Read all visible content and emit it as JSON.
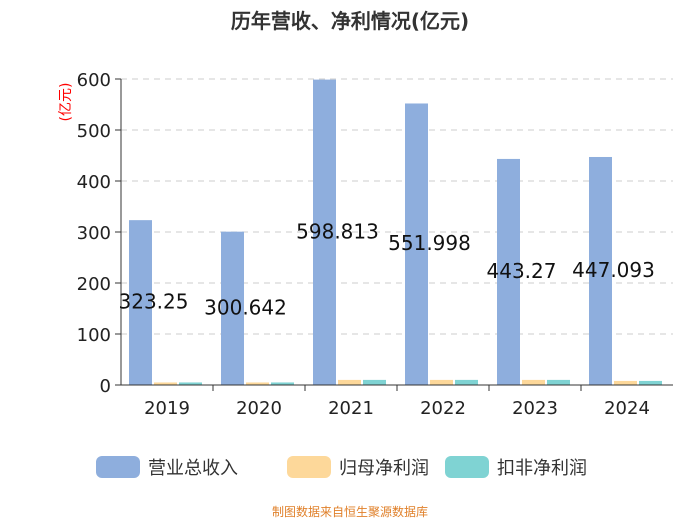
{
  "chart_data": {
    "type": "bar",
    "title": "历年营收、净利情况(亿元)",
    "ylabel": "(亿元)",
    "xlabel": "",
    "ylim": [
      0,
      600
    ],
    "yticks": [
      0,
      100,
      200,
      300,
      400,
      500,
      600
    ],
    "grid": true,
    "legend_position": "bottom",
    "categories": [
      "2019",
      "2020",
      "2021",
      "2022",
      "2023",
      "2024"
    ],
    "series": [
      {
        "name": "营业总收入",
        "color": "#8eaedd",
        "values": [
          323.25,
          300.642,
          598.813,
          551.998,
          443.27,
          447.093
        ]
      },
      {
        "name": "归母净利润",
        "color": "#fdd89a",
        "values": [
          5,
          5,
          10,
          10,
          10,
          8
        ]
      },
      {
        "name": "扣非净利润",
        "color": "#7fd3d3",
        "values": [
          5,
          5,
          10,
          10,
          10,
          8
        ]
      }
    ],
    "data_labels": [
      "323.25",
      "300.642",
      "598.813",
      "551.998",
      "443.27",
      "447.093"
    ]
  },
  "footer": {
    "source": "制图数据来自恒生聚源数据库"
  }
}
